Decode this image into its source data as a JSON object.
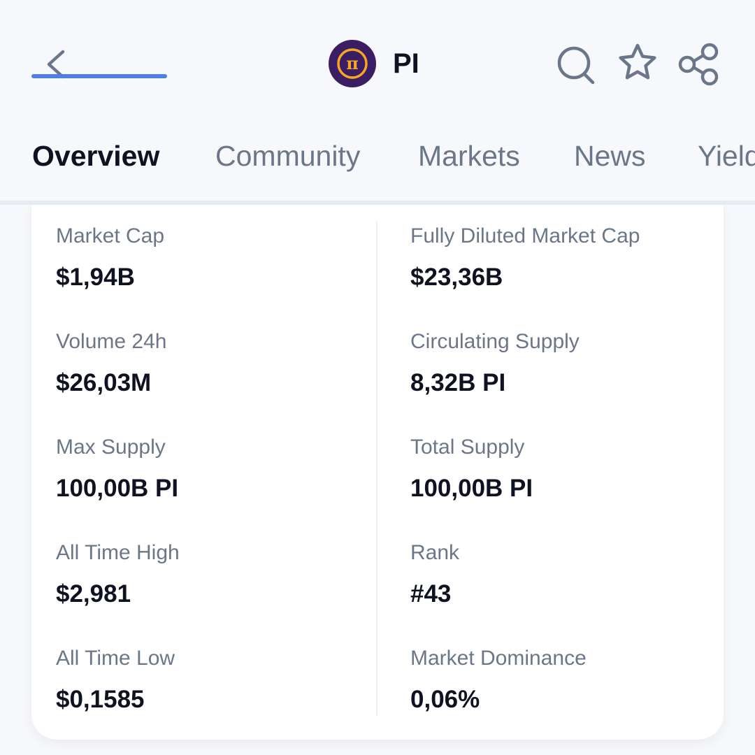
{
  "header": {
    "title": "PI",
    "logo_symbol": "π",
    "icons": [
      "back-arrow-icon",
      "coin-logo-icon",
      "search-icon",
      "star-icon",
      "share-icon"
    ]
  },
  "tabs": [
    {
      "label": "Overview",
      "active": true
    },
    {
      "label": "Community",
      "active": false
    },
    {
      "label": "Markets",
      "active": false
    },
    {
      "label": "News",
      "active": false
    },
    {
      "label": "Yield",
      "active": false
    }
  ],
  "stats": {
    "left": [
      {
        "label": "Market Cap",
        "value": "$1,94B"
      },
      {
        "label": "Volume 24h",
        "value": "$26,03M"
      },
      {
        "label": "Max Supply",
        "value": "100,00B PI"
      },
      {
        "label": "All Time High",
        "value": "$2,981"
      },
      {
        "label": "All Time Low",
        "value": "$0,1585"
      }
    ],
    "right": [
      {
        "label": "Fully Diluted Market Cap",
        "value": "$23,36B"
      },
      {
        "label": "Circulating Supply",
        "value": "8,32B PI"
      },
      {
        "label": "Total Supply",
        "value": "100,00B PI"
      },
      {
        "label": "Rank",
        "value": "#43"
      },
      {
        "label": "Market Dominance",
        "value": "0,06%"
      }
    ]
  },
  "colors": {
    "background": "#f7f8fb",
    "text_primary": "#0f1321",
    "text_secondary": "#6b7788",
    "accent": "#4e7fe1",
    "coin_bg": "#3b1d63",
    "coin_gold": "#f5a623"
  }
}
